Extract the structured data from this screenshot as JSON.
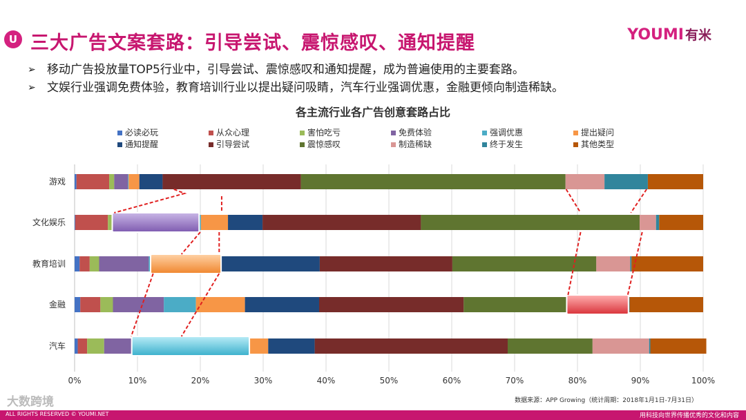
{
  "header": {
    "logo_glyph": "U",
    "title": "三大广告文案套路：引导尝试、震惊感叹、通知提醒",
    "brand_en_a": "YOU",
    "brand_en_b": "MI",
    "brand_cn": "有米"
  },
  "bullets": [
    "移动广告投放量TOP5行业中，引导尝试、震惊感叹和通知提醒，成为普遍使用的主要套路。",
    "文娱行业强调免费体验，教育培训行业以提出疑问吸睛，汽车行业强调优惠，金融更倾向制造稀缺。"
  ],
  "bullet_marker": "➢",
  "chart_data": {
    "type": "bar",
    "orientation": "horizontal",
    "stacked": true,
    "title": "各主流行业各广告创意套路占比",
    "categories": [
      "游戏",
      "文化娱乐",
      "教育培训",
      "金融",
      "汽车"
    ],
    "xlim": [
      0,
      100
    ],
    "xticks": [
      "0%",
      "10%",
      "20%",
      "30%",
      "40%",
      "50%",
      "60%",
      "70%",
      "80%",
      "90%",
      "100%"
    ],
    "grid": true,
    "legend_position": "top",
    "series": [
      {
        "name": "必读必玩",
        "color": "#4472c4",
        "values": [
          0.3,
          0.1,
          0.8,
          0.9,
          0.5
        ]
      },
      {
        "name": "从众心理",
        "color": "#c0504d",
        "values": [
          5.2,
          5.2,
          1.6,
          3.2,
          1.5
        ]
      },
      {
        "name": "害怕吃亏",
        "color": "#9bbb59",
        "values": [
          0.8,
          0.8,
          1.5,
          2.0,
          2.7
        ]
      },
      {
        "name": "免费体验",
        "color": "#8064a2",
        "values": [
          2.2,
          13.6,
          7.9,
          8.1,
          4.5
        ]
      },
      {
        "name": "强调优惠",
        "color": "#4bacc6",
        "values": [
          0.1,
          0.4,
          0.4,
          5.1,
          18.5
        ]
      },
      {
        "name": "提出疑问",
        "color": "#f79646",
        "values": [
          1.7,
          4.3,
          11.0,
          7.8,
          3.1
        ]
      },
      {
        "name": "通知提醒",
        "color": "#1f497d",
        "values": [
          3.7,
          5.5,
          15.8,
          11.8,
          7.4
        ]
      },
      {
        "name": "引导尝试",
        "color": "#772c2a",
        "values": [
          22.0,
          25.2,
          21.1,
          23.0,
          30.7
        ]
      },
      {
        "name": "震惊感叹",
        "color": "#5f7530",
        "values": [
          42.1,
          34.8,
          22.9,
          16.5,
          13.5
        ]
      },
      {
        "name": "制造稀缺",
        "color": "#d99694",
        "values": [
          6.2,
          2.6,
          5.4,
          9.6,
          9.0
        ]
      },
      {
        "name": "终于发生",
        "color": "#31859c",
        "values": [
          6.9,
          0.5,
          0.2,
          0.3,
          0.2
        ]
      },
      {
        "name": "其他类型",
        "color": "#b65708",
        "values": [
          8.8,
          7.0,
          11.4,
          11.7,
          8.9
        ]
      }
    ],
    "highlights": [
      {
        "category": "文化娱乐",
        "series": "免费体验"
      },
      {
        "category": "教育培训",
        "series": "提出疑问"
      },
      {
        "category": "汽车",
        "series": "强调优惠"
      },
      {
        "category": "金融",
        "series": "制造稀缺"
      }
    ],
    "source": "数据来源：APP Growing（统计周期：2018年1月1日-7月31日）"
  },
  "watermark": "大数跨境",
  "footer": {
    "left": "ALL RIGHTS RESERVED © YOUMI.NET",
    "right": "用科技向世界传播优秀的文化和内容"
  }
}
